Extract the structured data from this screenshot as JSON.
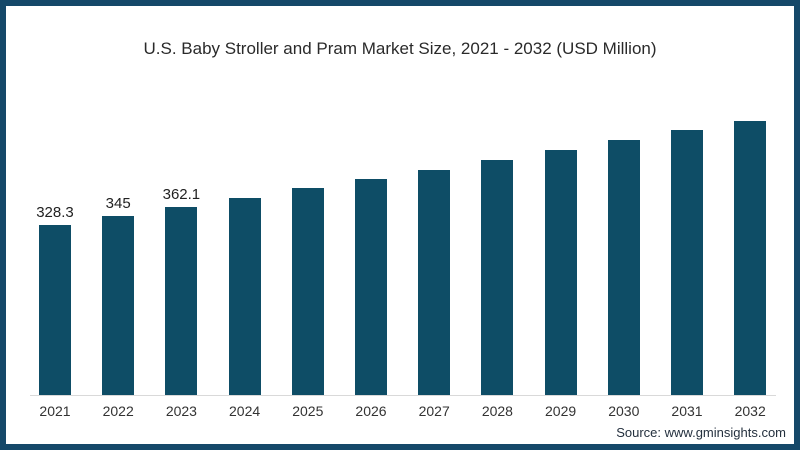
{
  "header": {
    "title": "U.S. Baby Stroller and Pram Market Size, 2021 - 2032 (USD Million)"
  },
  "footer": {
    "source": "Source: www.gminsights.com"
  },
  "colors": {
    "bar": "#0e4d66",
    "frame_border": "#154869",
    "axis_line": "#d9d9d9",
    "title_text": "#2a2a2a",
    "label_text": "#222222"
  },
  "chart_data": {
    "type": "bar",
    "title": "U.S. Baby Stroller and Pram Market Size, 2021 - 2032 (USD Million)",
    "categories": [
      "2021",
      "2022",
      "2023",
      "2024",
      "2025",
      "2026",
      "2027",
      "2028",
      "2029",
      "2030",
      "2031",
      "2032"
    ],
    "values": [
      328.3,
      345,
      362.1,
      380,
      398,
      416,
      434,
      453,
      472,
      491,
      510,
      528
    ],
    "value_labels": [
      "328.3",
      "345",
      "362.1",
      null,
      null,
      null,
      null,
      null,
      null,
      null,
      null,
      null
    ],
    "estimated_indices": [
      3,
      4,
      5,
      6,
      7,
      8,
      9,
      10,
      11
    ],
    "xlabel": "",
    "ylabel": "",
    "unit": "USD Million",
    "ylim": [
      0,
      600
    ],
    "grid": false,
    "legend": false
  }
}
